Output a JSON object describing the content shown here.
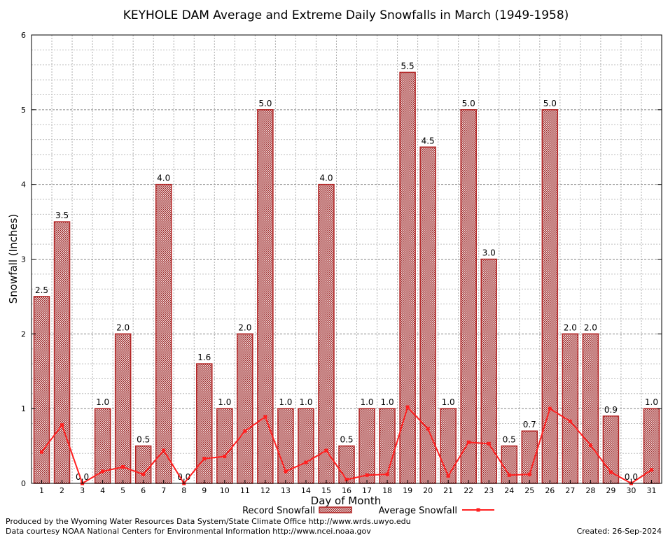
{
  "chart_data": {
    "type": "bar",
    "title": "KEYHOLE DAM Average and Extreme Daily Snowfalls in March (1949-1958)",
    "xlabel": "Day of Month",
    "ylabel": "Snowfall (Inches)",
    "ylim": [
      0,
      6
    ],
    "yticks": [
      "0",
      "1",
      "2",
      "3",
      "4",
      "5",
      "6"
    ],
    "grid": true,
    "legend_position": "bottom-center",
    "categories": [
      "1",
      "2",
      "3",
      "4",
      "5",
      "6",
      "7",
      "8",
      "9",
      "10",
      "11",
      "12",
      "13",
      "14",
      "15",
      "16",
      "17",
      "18",
      "19",
      "20",
      "21",
      "22",
      "23",
      "24",
      "25",
      "26",
      "27",
      "28",
      "29",
      "30",
      "31"
    ],
    "series": [
      {
        "name": "Record Snowfall",
        "type": "bar",
        "color": "#b22222",
        "values": [
          2.5,
          3.5,
          0.0,
          1.0,
          2.0,
          0.5,
          4.0,
          0.0,
          1.6,
          1.0,
          2.0,
          5.0,
          1.0,
          1.0,
          4.0,
          0.5,
          1.0,
          1.0,
          5.5,
          4.5,
          1.0,
          5.0,
          3.0,
          0.5,
          0.7,
          5.0,
          2.0,
          2.0,
          0.9,
          0.0,
          1.0
        ],
        "labels": [
          "2.5",
          "3.5",
          "0.0",
          "1.0",
          "2.0",
          "0.5",
          "4.0",
          "0.0",
          "1.6",
          "1.0",
          "2.0",
          "5.0",
          "1.0",
          "1.0",
          "4.0",
          "0.5",
          "1.0",
          "1.0",
          "5.5",
          "4.5",
          "1.0",
          "5.0",
          "3.0",
          "0.5",
          "0.7",
          "5.0",
          "2.0",
          "2.0",
          "0.9",
          "0.0",
          "1.0"
        ]
      },
      {
        "name": "Average Snowfall",
        "type": "line",
        "color": "#ff2020",
        "values": [
          0.42,
          0.78,
          0.0,
          0.16,
          0.22,
          0.12,
          0.44,
          0.0,
          0.33,
          0.36,
          0.7,
          0.89,
          0.16,
          0.28,
          0.44,
          0.05,
          0.11,
          0.12,
          1.02,
          0.73,
          0.1,
          0.55,
          0.53,
          0.11,
          0.12,
          1.0,
          0.83,
          0.51,
          0.15,
          0.0,
          0.18
        ]
      }
    ]
  },
  "footer": {
    "credit1": "Produced by the Wyoming Water Resources Data System/State Climate Office http://www.wrds.uwyo.edu",
    "credit2": "Data courtesy NOAA National Centers for Environmental Information http://www.ncei.noaa.gov",
    "created": "Created:  26-Sep-2024"
  }
}
